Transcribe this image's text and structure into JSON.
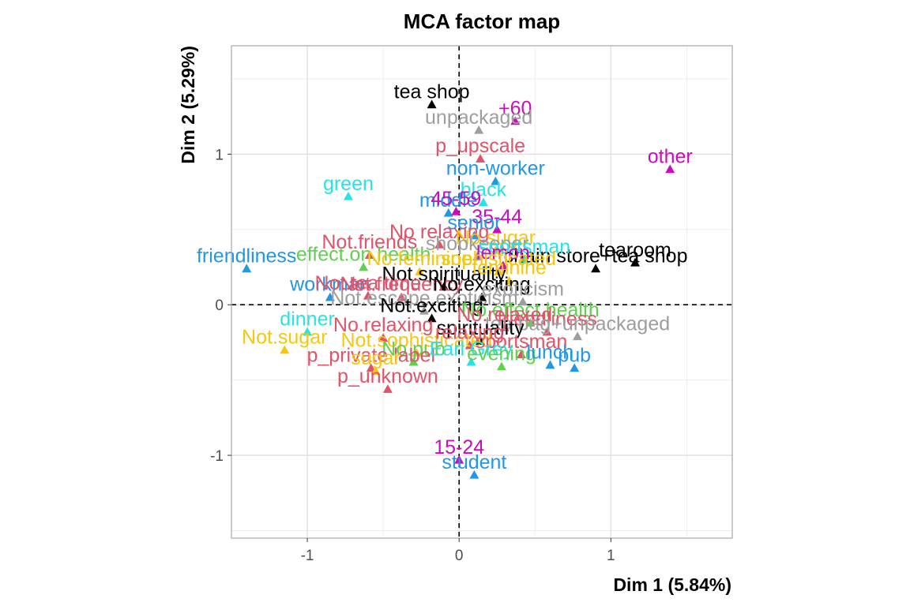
{
  "chart_data": {
    "type": "scatter",
    "title": "MCA factor map",
    "xlabel": "Dim 1 (5.84%)",
    "ylabel": "Dim 2 (5.29%)",
    "xlim": [
      -1.5,
      1.8
    ],
    "ylim": [
      -1.55,
      1.72
    ],
    "x_ticks": [
      -1,
      0,
      1
    ],
    "x_tick_labels": [
      "-1",
      "0",
      "1"
    ],
    "y_ticks": [
      -1,
      0,
      1
    ],
    "y_tick_labels": [
      "-1",
      "0",
      "1"
    ],
    "grid": true,
    "reference_lines": [
      0,
      0
    ],
    "colors": {
      "black": "#000000",
      "red": "#DF536B",
      "green": "#61D04F",
      "blue": "#2297E6",
      "cyan": "#28E2E5",
      "magenta": "#CD0BBC",
      "yellow": "#F5C710",
      "gray": "#9E9E9E"
    },
    "points": [
      {
        "label": "tea shop",
        "x": -0.18,
        "y": 1.33,
        "color": "black"
      },
      {
        "label": "+60",
        "x": 0.37,
        "y": 1.22,
        "color": "magenta"
      },
      {
        "label": "unpackaged",
        "x": 0.13,
        "y": 1.16,
        "color": "gray"
      },
      {
        "label": "p_upscale",
        "x": 0.14,
        "y": 0.97,
        "color": "red"
      },
      {
        "label": "other",
        "x": 1.39,
        "y": 0.9,
        "color": "magenta"
      },
      {
        "label": "non-worker",
        "x": 0.24,
        "y": 0.82,
        "color": "blue"
      },
      {
        "label": "green",
        "x": -0.73,
        "y": 0.72,
        "color": "cyan"
      },
      {
        "label": "black",
        "x": 0.16,
        "y": 0.68,
        "color": "cyan"
      },
      {
        "label": "middle",
        "x": -0.07,
        "y": 0.61,
        "color": "blue"
      },
      {
        "label": "45-59",
        "x": -0.02,
        "y": 0.62,
        "color": "magenta"
      },
      {
        "label": "35-44",
        "x": 0.25,
        "y": 0.5,
        "color": "magenta"
      },
      {
        "label": "senior",
        "x": 0.1,
        "y": 0.46,
        "color": "blue"
      },
      {
        "label": "No relaxing",
        "x": -0.13,
        "y": 0.4,
        "color": "red"
      },
      {
        "label": "Not.friends",
        "x": -0.59,
        "y": 0.33,
        "color": "red"
      },
      {
        "label": "No.sugar",
        "x": 0.24,
        "y": 0.36,
        "color": "yellow"
      },
      {
        "label": "shopkeeper",
        "x": 0.12,
        "y": 0.32,
        "color": "gray"
      },
      {
        "label": "tearoom",
        "x": 1.16,
        "y": 0.28,
        "color": "black"
      },
      {
        "label": "chain store+tea shop",
        "x": 0.9,
        "y": 0.24,
        "color": "black"
      },
      {
        "label": "sportsman",
        "x": 0.43,
        "y": 0.3,
        "color": "cyan"
      },
      {
        "label": "lemon",
        "x": 0.29,
        "y": 0.26,
        "color": "magenta"
      },
      {
        "label": "friendliness",
        "x": -1.4,
        "y": 0.24,
        "color": "blue"
      },
      {
        "label": "effect.on.health",
        "x": -0.63,
        "y": 0.25,
        "color": "green"
      },
      {
        "label": "No.feminine",
        "x": -0.26,
        "y": 0.22,
        "color": "yellow"
      },
      {
        "label": "Not.spirituality",
        "x": -0.1,
        "y": 0.12,
        "color": "black"
      },
      {
        "label": "sophisticated",
        "x": 0.26,
        "y": 0.22,
        "color": "yellow"
      },
      {
        "label": "feminine",
        "x": 0.33,
        "y": 0.16,
        "color": "yellow"
      },
      {
        "label": "workman",
        "x": -0.85,
        "y": 0.05,
        "color": "blue"
      },
      {
        "label": "Not.tea time",
        "x": -0.6,
        "y": 0.06,
        "color": "red"
      },
      {
        "label": "Not.frequency",
        "x": -0.38,
        "y": 0.05,
        "color": "red"
      },
      {
        "label": "No.exciting",
        "x": 0.15,
        "y": 0.05,
        "color": "black"
      },
      {
        "label": "exoticism",
        "x": 0.42,
        "y": 0.02,
        "color": "gray"
      },
      {
        "label": "Not.escape.exoticism",
        "x": -0.23,
        "y": -0.04,
        "color": "gray"
      },
      {
        "label": "Not.exciting",
        "x": -0.18,
        "y": -0.09,
        "color": "black"
      },
      {
        "label": "dinner",
        "x": -1.0,
        "y": -0.18,
        "color": "cyan"
      },
      {
        "label": "No.relaxing",
        "x": -0.5,
        "y": -0.22,
        "color": "red"
      },
      {
        "label": "Not.sugar",
        "x": -1.15,
        "y": -0.3,
        "color": "yellow"
      },
      {
        "label": "Not.sophisticated",
        "x": -0.28,
        "y": -0.32,
        "color": "yellow"
      },
      {
        "label": "No.pub",
        "x": -0.3,
        "y": -0.38,
        "color": "green"
      },
      {
        "label": "p_private label",
        "x": -0.58,
        "y": -0.42,
        "color": "red"
      },
      {
        "label": "sugar",
        "x": -0.55,
        "y": -0.44,
        "color": "yellow"
      },
      {
        "label": "p_unknown",
        "x": -0.47,
        "y": -0.56,
        "color": "red"
      },
      {
        "label": "No.effect.health",
        "x": 0.47,
        "y": -0.12,
        "color": "green"
      },
      {
        "label": "No.relaxed",
        "x": 0.3,
        "y": -0.15,
        "color": "red"
      },
      {
        "label": "friendliness",
        "x": 0.58,
        "y": -0.18,
        "color": "red"
      },
      {
        "label": "tea bag+unpackaged",
        "x": 0.78,
        "y": -0.21,
        "color": "gray"
      },
      {
        "label": "spirituality",
        "x": 0.14,
        "y": -0.24,
        "color": "black"
      },
      {
        "label": "relaxing",
        "x": 0.07,
        "y": -0.27,
        "color": "red"
      },
      {
        "label": "sportsman",
        "x": 0.41,
        "y": -0.33,
        "color": "red"
      },
      {
        "label": "Earl Grey",
        "x": 0.08,
        "y": -0.38,
        "color": "cyan"
      },
      {
        "label": "evening",
        "x": 0.28,
        "y": -0.41,
        "color": "green"
      },
      {
        "label": "lunch",
        "x": 0.6,
        "y": -0.4,
        "color": "blue"
      },
      {
        "label": "pub",
        "x": 0.76,
        "y": -0.42,
        "color": "blue"
      },
      {
        "label": "15-24",
        "x": 0.0,
        "y": -1.03,
        "color": "magenta"
      },
      {
        "label": "student",
        "x": 0.1,
        "y": -1.13,
        "color": "blue"
      }
    ]
  }
}
